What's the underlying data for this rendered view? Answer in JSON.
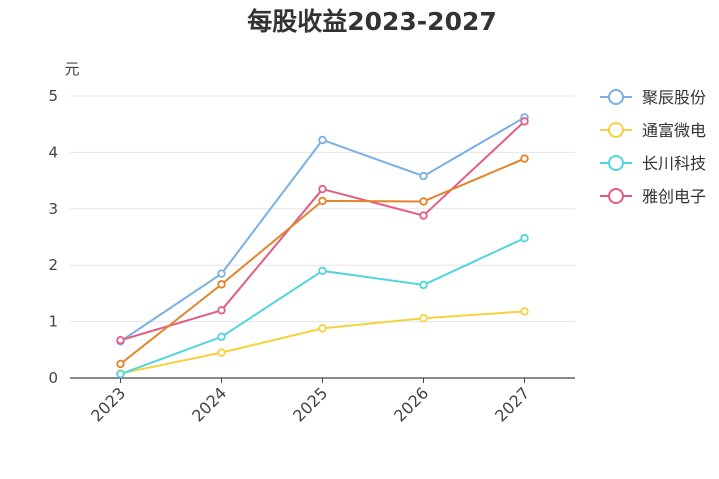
{
  "chart_data": {
    "type": "line",
    "title": "每股收益2023-2027",
    "ylabel": "元",
    "xlabel": "",
    "categories": [
      "2023",
      "2024",
      "2025",
      "2026",
      "2027"
    ],
    "ylim": [
      0,
      5
    ],
    "yticks": [
      "0",
      "1",
      "2",
      "3",
      "4",
      "5"
    ],
    "grid": true,
    "legend_position": "right",
    "series": [
      {
        "name": "聚辰股份",
        "color": "#7ab0e3",
        "values": [
          0.65,
          1.85,
          4.22,
          3.58,
          4.62
        ]
      },
      {
        "name": "通富微电",
        "color": "#f6d23f",
        "values": [
          0.08,
          0.45,
          0.88,
          1.06,
          1.18
        ]
      },
      {
        "name": "长川科技",
        "color": "#4fd6dc",
        "values": [
          0.07,
          0.73,
          1.9,
          1.65,
          2.48
        ]
      },
      {
        "name": "雅创电子",
        "color": "#e35d83",
        "values": [
          0.67,
          1.2,
          3.35,
          2.88,
          4.55
        ]
      },
      {
        "name": "",
        "color": "#e2842a",
        "values": [
          0.25,
          1.66,
          3.14,
          3.13,
          3.89
        ]
      }
    ]
  }
}
